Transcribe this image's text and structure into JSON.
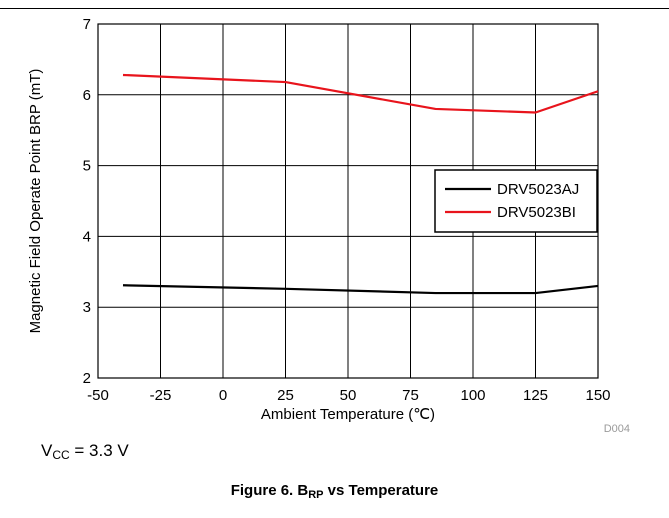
{
  "chart_data": {
    "type": "line",
    "xlabel": "Ambient Temperature (℃)",
    "ylabel": "Magnetic Field Operate Point BRP (mT)",
    "xlim": [
      -50,
      150
    ],
    "ylim": [
      2,
      7
    ],
    "xticks": [
      "-50",
      "-25",
      "0",
      "25",
      "50",
      "75",
      "100",
      "125",
      "150"
    ],
    "yticks": [
      "2",
      "3",
      "4",
      "5",
      "6",
      "7"
    ],
    "grid": true,
    "legend_position": "right",
    "series": [
      {
        "name": "DRV5023AJ",
        "color": "#000000",
        "x": [
          -40,
          25,
          85,
          125,
          150
        ],
        "values": [
          3.31,
          3.26,
          3.2,
          3.2,
          3.3
        ]
      },
      {
        "name": "DRV5023BI",
        "color": "#e8141c",
        "x": [
          -40,
          25,
          85,
          125,
          150
        ],
        "values": [
          6.28,
          6.18,
          5.8,
          5.75,
          6.05
        ]
      }
    ],
    "figure_id": "D004"
  },
  "note": {
    "prefix": "V",
    "sub": "CC",
    "suffix": " = 3.3 V"
  },
  "caption": {
    "prefix": "Figure 6. B",
    "sub": "RP",
    "suffix": " vs Temperature"
  }
}
